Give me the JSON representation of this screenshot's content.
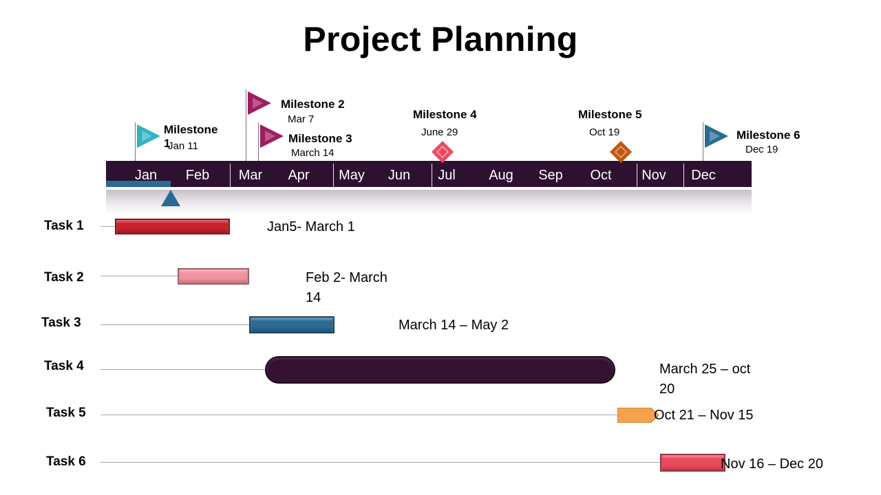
{
  "title": "Project Planning",
  "chart_data": {
    "type": "gantt",
    "title": "Project Planning",
    "months": [
      "Jan",
      "Feb",
      "Mar",
      "Apr",
      "May",
      "Jun",
      "Jul",
      "Aug",
      "Sep",
      "Oct",
      "Nov",
      "Dec"
    ],
    "progress_end": "Feb 20",
    "milestones": [
      {
        "name": "Milestone  1",
        "date_label": "Jan 11",
        "date": [
          1,
          11
        ],
        "marker": "flag",
        "color": "#2fb3c2"
      },
      {
        "name": "Milestone  2",
        "date_label": "Mar 7",
        "date": [
          3,
          7
        ],
        "marker": "flag",
        "color": "#9e1d62"
      },
      {
        "name": "Milestone  3",
        "date_label": "March 14",
        "date": [
          3,
          14
        ],
        "marker": "flag",
        "color": "#9e1d62"
      },
      {
        "name": "Milestone  4",
        "date_label": "June 29",
        "date": [
          6,
          29
        ],
        "marker": "diamond",
        "color": "#ea4a64"
      },
      {
        "name": "Milestone  5",
        "date_label": "Oct 19",
        "date": [
          10,
          19
        ],
        "marker": "diamond",
        "color": "#c0580f"
      },
      {
        "name": "Milestone  6",
        "date_label": "Dec 19",
        "date": [
          12,
          19
        ],
        "marker": "flag",
        "color": "#2b6a93"
      }
    ],
    "tasks": [
      {
        "name": "Task 1",
        "range_label": "Jan5- March 1",
        "start": [
          1,
          5
        ],
        "end": [
          3,
          1
        ],
        "color": "#c8232b",
        "shape": "bar"
      },
      {
        "name": "Task 2",
        "range_label": "Feb 2- March 14",
        "start": [
          2,
          2
        ],
        "end": [
          3,
          14
        ],
        "color": "#f2939f",
        "shape": "bar"
      },
      {
        "name": "Task 3",
        "range_label": "March 14 – May 2",
        "start": [
          3,
          14
        ],
        "end": [
          5,
          2
        ],
        "color": "#2b6a93",
        "shape": "bar"
      },
      {
        "name": "Task 4",
        "range_label": "March 25 – oct 20",
        "start": [
          3,
          25
        ],
        "end": [
          10,
          20
        ],
        "color": "#331331",
        "shape": "rounded"
      },
      {
        "name": "Task 5",
        "range_label": "Oct 21 – Nov 15",
        "start": [
          10,
          21
        ],
        "end": [
          11,
          15
        ],
        "color": "#f5a24e",
        "shape": "arrow"
      },
      {
        "name": "Task 6",
        "range_label": "Nov 16 – Dec 20",
        "start": [
          11,
          16
        ],
        "end": [
          12,
          20
        ],
        "color": "#e94a5c",
        "shape": "bar"
      }
    ]
  }
}
